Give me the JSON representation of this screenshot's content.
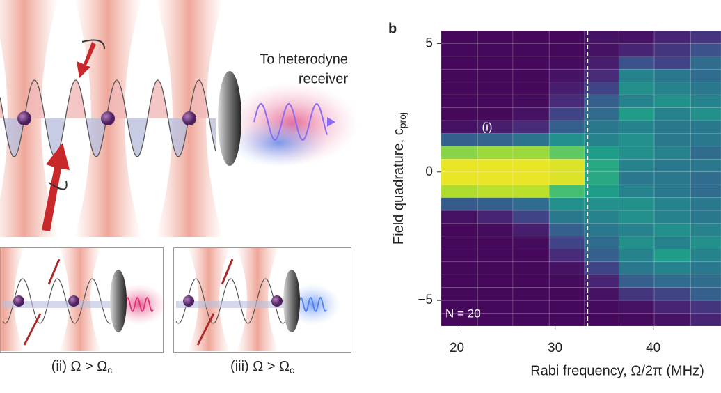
{
  "diagram": {
    "receiver_label": [
      "To heterodyne",
      "receiver"
    ],
    "insets": [
      {
        "label": "(ii) Ω > Ω",
        "sub": "c"
      },
      {
        "label": "(iii) Ω > Ω",
        "sub": "c"
      }
    ]
  },
  "chart_data": {
    "type": "heatmap",
    "panel": "b",
    "colormap": "viridis",
    "xlabel": "Rabi frequency, Ω/2π (MHz)",
    "ylabel": "Field quadrature, c",
    "ylabel_sub": "proj",
    "annotations": [
      "(i)",
      "N = 20"
    ],
    "xlim": [
      18.4,
      46.9
    ],
    "ylim": [
      -6,
      5.5
    ],
    "xticks": [
      20,
      30,
      40
    ],
    "yticks": [
      5,
      0,
      {
        "value": -5,
        "label": "−5"
      }
    ],
    "threshold_x": 33.3,
    "x_edges": [
      18.4,
      22.1,
      25.7,
      29.4,
      33.0,
      36.5,
      40.1,
      43.8,
      46.9
    ],
    "y_edges": [
      5.5,
      5,
      4.5,
      4,
      3.5,
      3,
      2.5,
      2,
      1.5,
      1,
      0.5,
      0,
      -0.5,
      -1,
      -1.5,
      -2,
      -2.5,
      -3,
      -3.5,
      -4,
      -4.5,
      -5,
      -5.5,
      -6
    ],
    "values": [
      [
        0.02,
        0.02,
        0.02,
        0.02,
        0.05,
        0.05,
        0.1,
        0.15
      ],
      [
        0.02,
        0.02,
        0.02,
        0.02,
        0.05,
        0.1,
        0.15,
        0.25
      ],
      [
        0.02,
        0.02,
        0.02,
        0.03,
        0.08,
        0.25,
        0.2,
        0.35
      ],
      [
        0.02,
        0.02,
        0.02,
        0.05,
        0.12,
        0.45,
        0.4,
        0.35
      ],
      [
        0.02,
        0.02,
        0.02,
        0.08,
        0.2,
        0.5,
        0.45,
        0.4
      ],
      [
        0.02,
        0.02,
        0.03,
        0.12,
        0.3,
        0.45,
        0.5,
        0.45
      ],
      [
        0.02,
        0.02,
        0.05,
        0.2,
        0.35,
        0.55,
        0.45,
        0.5
      ],
      [
        0.05,
        0.08,
        0.12,
        0.3,
        0.4,
        0.45,
        0.4,
        0.4
      ],
      [
        0.3,
        0.32,
        0.38,
        0.5,
        0.45,
        0.5,
        0.4,
        0.4
      ],
      [
        0.82,
        0.85,
        0.85,
        0.75,
        0.55,
        0.5,
        0.45,
        0.35
      ],
      [
        0.97,
        0.97,
        0.97,
        0.95,
        0.6,
        0.45,
        0.4,
        0.4
      ],
      [
        0.97,
        0.97,
        0.97,
        0.95,
        0.6,
        0.4,
        0.4,
        0.35
      ],
      [
        0.88,
        0.9,
        0.9,
        0.7,
        0.55,
        0.45,
        0.4,
        0.35
      ],
      [
        0.28,
        0.3,
        0.35,
        0.5,
        0.5,
        0.5,
        0.45,
        0.4
      ],
      [
        0.05,
        0.1,
        0.2,
        0.4,
        0.45,
        0.5,
        0.45,
        0.4
      ],
      [
        0.02,
        0.03,
        0.08,
        0.3,
        0.4,
        0.45,
        0.5,
        0.45
      ],
      [
        0.02,
        0.02,
        0.03,
        0.2,
        0.35,
        0.5,
        0.45,
        0.5
      ],
      [
        0.02,
        0.02,
        0.02,
        0.12,
        0.3,
        0.45,
        0.55,
        0.45
      ],
      [
        0.02,
        0.02,
        0.02,
        0.05,
        0.2,
        0.4,
        0.45,
        0.4
      ],
      [
        0.02,
        0.02,
        0.02,
        0.03,
        0.1,
        0.3,
        0.35,
        0.35
      ],
      [
        0.02,
        0.02,
        0.02,
        0.02,
        0.05,
        0.15,
        0.2,
        0.3
      ],
      [
        0.02,
        0.02,
        0.02,
        0.02,
        0.03,
        0.05,
        0.1,
        0.15
      ],
      [
        0.02,
        0.02,
        0.02,
        0.02,
        0.02,
        0.03,
        0.05,
        0.1
      ]
    ]
  }
}
